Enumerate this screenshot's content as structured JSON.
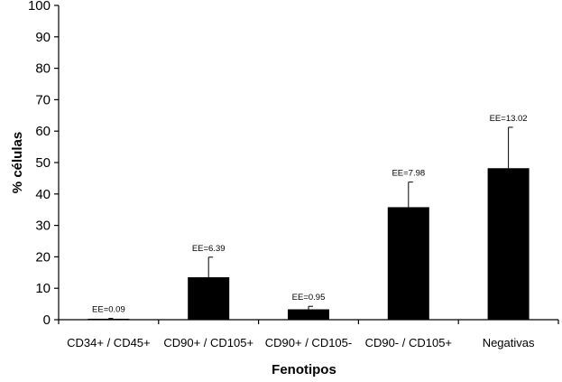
{
  "chart_data": {
    "type": "bar",
    "title": "",
    "xlabel": "Fenotipos",
    "ylabel": "% células",
    "ylim": [
      0,
      100
    ],
    "yticks": [
      0,
      10,
      20,
      30,
      40,
      50,
      60,
      70,
      80,
      90,
      100
    ],
    "categories": [
      "CD34+ / CD45+",
      "CD90+ / CD105+",
      "CD90+ / CD105-",
      "CD90- / CD105+",
      "Negativas"
    ],
    "values": [
      0.3,
      13.5,
      3.3,
      35.8,
      48.2
    ],
    "errors": [
      0.09,
      6.39,
      0.95,
      7.98,
      13.02
    ],
    "error_labels": [
      "EE=0.09",
      "EE=6.39",
      "EE=0.95",
      "EE=7.98",
      "EE=13.02"
    ],
    "grid": false,
    "colors": {
      "bar": "#000000",
      "axis": "#000000",
      "background": "#ffffff"
    }
  }
}
